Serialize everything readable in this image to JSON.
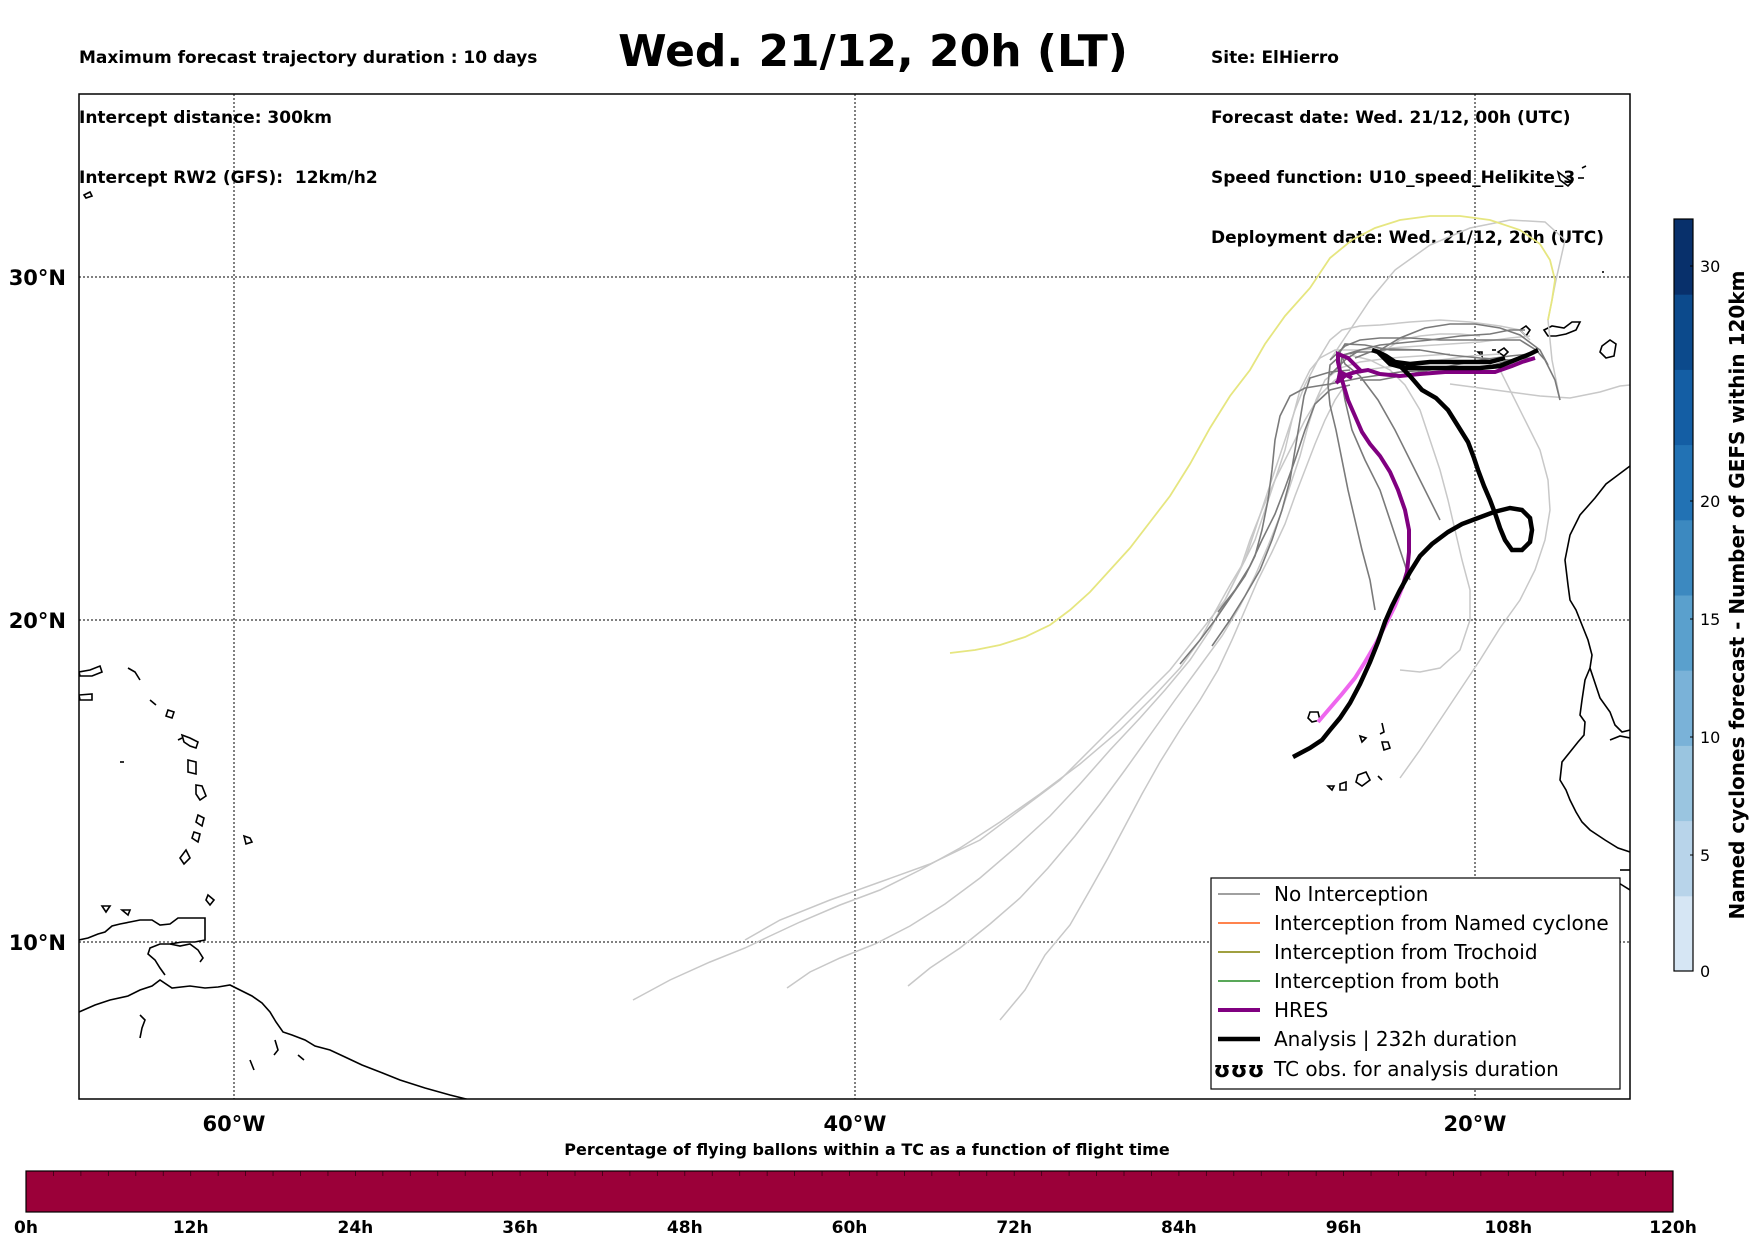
{
  "header": {
    "left_lines": [
      "Maximum forecast trajectory duration : 10 days",
      "Intercept distance: 300km",
      "Intercept RW2 (GFS):  12km/h2"
    ],
    "title": "Wed. 21/12, 20h (LT)",
    "right_lines": [
      "Site: ElHierro",
      "Forecast date: Wed. 21/12, 00h (UTC)",
      "Speed function: U10_speed_Helikite_3",
      "Deployment date: Wed. 21/12, 20h (UTC)"
    ]
  },
  "map": {
    "lon_ticks": [
      "60°W",
      "40°W",
      "20°W"
    ],
    "lat_ticks": [
      "30°N",
      "20°N",
      "10°N"
    ],
    "extent": {
      "lon": [
        -65,
        -15
      ],
      "lat": [
        5.5,
        35
      ]
    }
  },
  "legend": {
    "items": [
      {
        "label": "No Interception",
        "color": "#808080"
      },
      {
        "label": "Interception from Named cyclone",
        "color": "#ff5a14"
      },
      {
        "label": "Interception from Trochoid",
        "color": "#808000"
      },
      {
        "label": "Interception from both",
        "color": "#228b22"
      },
      {
        "label": "HRES",
        "color": "#800080"
      },
      {
        "label": "Analysis | 232h duration",
        "color": "#000000"
      },
      {
        "label": "TC obs. for analysis duration",
        "color": "#000000"
      }
    ],
    "tc_symbol": "ʊʊʊ"
  },
  "colorbar_right": {
    "label": "Named cyclones forecast - Number of GEFS within 120km",
    "ticks": [
      "0",
      "5",
      "10",
      "15",
      "20",
      "30"
    ],
    "colors": [
      "#d6e6f4",
      "#b8d4ea",
      "#9ac5e0",
      "#7ab2d8",
      "#5aa0cd",
      "#3c89c0",
      "#2272b4",
      "#145ea4",
      "#0c4a8c",
      "#08306b"
    ]
  },
  "bottom_bar": {
    "title": "Percentage of flying ballons within a TC as a function of flight time",
    "ticks": [
      "0h",
      "12h",
      "24h",
      "36h",
      "48h",
      "60h",
      "72h",
      "84h",
      "96h",
      "108h",
      "120h"
    ],
    "color": "#9b0039",
    "values_percent": [
      0,
      0,
      0,
      0,
      0,
      0,
      0,
      0,
      0,
      0,
      0
    ]
  }
}
